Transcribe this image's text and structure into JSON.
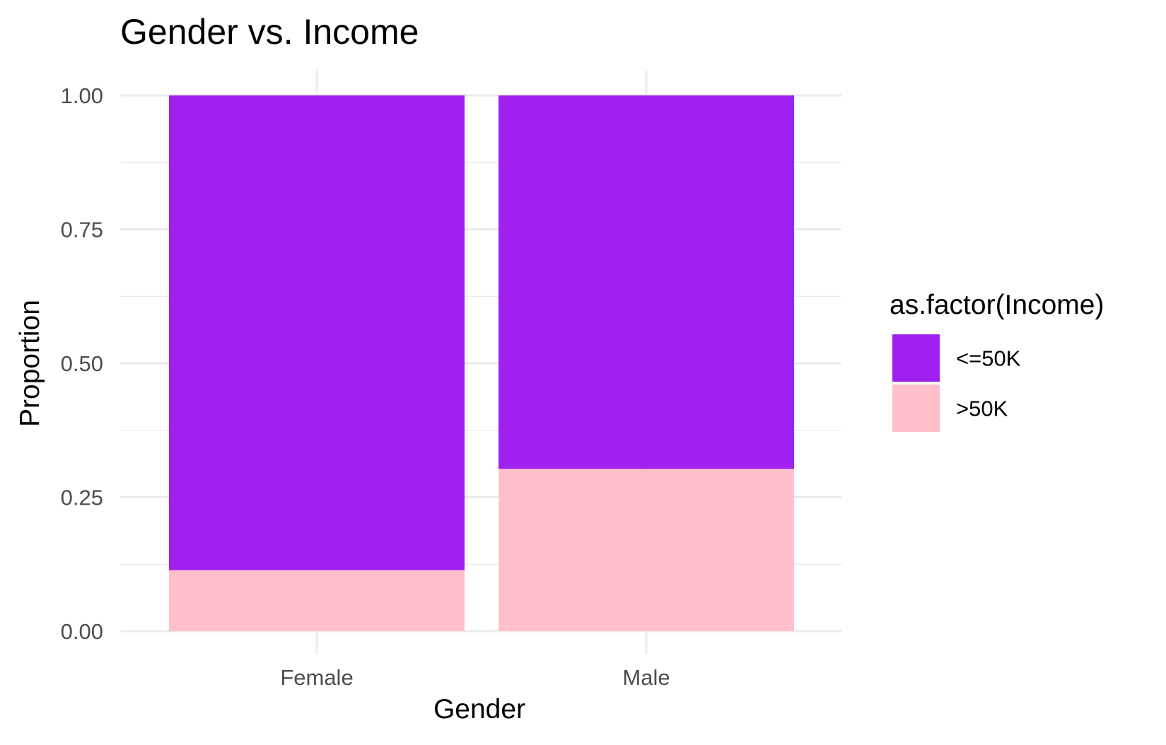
{
  "chart_data": {
    "type": "bar",
    "stacked": true,
    "title": "Gender vs. Income",
    "xlabel": "Gender",
    "ylabel": "Proportion",
    "categories": [
      "Female",
      "Male"
    ],
    "series": [
      {
        "name": "<=50K",
        "color": "#A020F0",
        "values": [
          0.886,
          0.697
        ]
      },
      {
        "name": ">50K",
        "color": "#FFC0CB",
        "values": [
          0.114,
          0.303
        ]
      }
    ],
    "ylim": [
      0,
      1
    ],
    "yticks": [
      "0.00",
      "0.25",
      "0.50",
      "0.75",
      "1.00"
    ],
    "grid": true,
    "legend": {
      "title": "as.factor(Income)",
      "position": "right"
    }
  }
}
